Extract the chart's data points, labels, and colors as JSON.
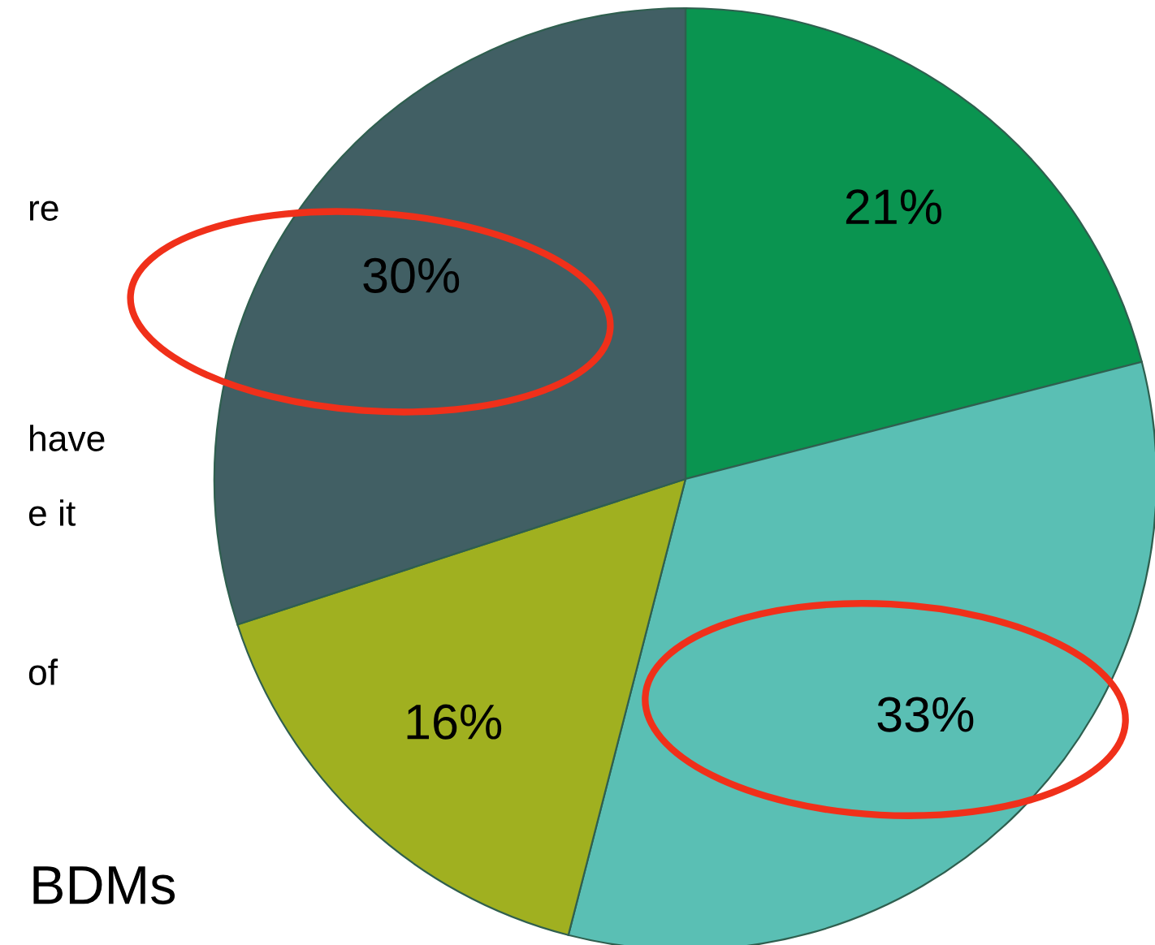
{
  "chart_data": {
    "type": "pie",
    "categories": [
      null,
      null,
      null,
      null
    ],
    "values": [
      21,
      33,
      16,
      30
    ],
    "colors": [
      "#0a9450",
      "#5abfb4",
      "#a0b020",
      "#415f64"
    ],
    "value_labels": [
      "21%",
      "33%",
      "16%",
      "30%"
    ],
    "annotations": [
      "re",
      "have",
      "e it",
      "of",
      "BDMs"
    ],
    "legend": false
  }
}
